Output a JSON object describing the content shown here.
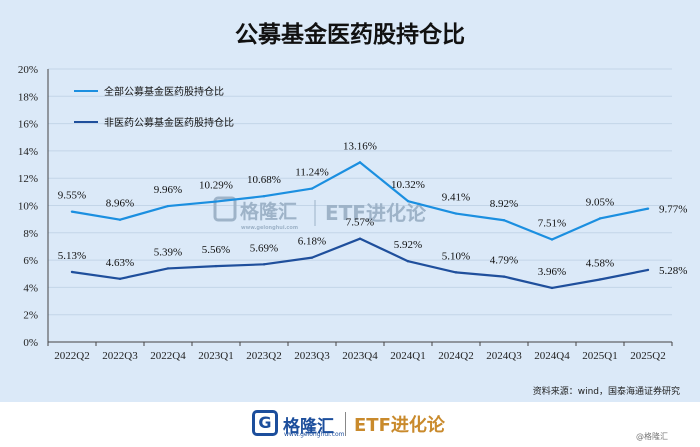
{
  "chart_data": {
    "type": "line",
    "title": "公募基金医药股持仓比",
    "categories": [
      "2022Q2",
      "2022Q3",
      "2022Q4",
      "2023Q1",
      "2023Q2",
      "2023Q3",
      "2023Q4",
      "2024Q1",
      "2024Q2",
      "2024Q3",
      "2024Q4",
      "2025Q1",
      "2025Q2"
    ],
    "series": [
      {
        "name": "全部公募基金医药股持仓比",
        "color": "#1b8fe0",
        "values": [
          9.55,
          8.96,
          9.96,
          10.29,
          10.68,
          11.24,
          13.16,
          10.32,
          9.41,
          8.92,
          7.51,
          9.05,
          9.77
        ],
        "labels": [
          "9.55%",
          "8.96%",
          "9.96%",
          "10.29%",
          "10.68%",
          "11.24%",
          "13.16%",
          "10.32%",
          "9.41%",
          "8.92%",
          "7.51%",
          "9.05%",
          "9.77%"
        ]
      },
      {
        "name": "非医药公募基金医药股持仓比",
        "color": "#1f4f9c",
        "values": [
          5.13,
          4.63,
          5.39,
          5.56,
          5.69,
          6.18,
          7.57,
          5.92,
          5.1,
          4.79,
          3.96,
          4.58,
          5.28
        ],
        "labels": [
          "5.13%",
          "4.63%",
          "5.39%",
          "5.56%",
          "5.69%",
          "6.18%",
          "7.57%",
          "5.92%",
          "5.10%",
          "4.79%",
          "3.96%",
          "4.58%",
          "5.28%"
        ]
      }
    ],
    "yticks": [
      "0%",
      "2%",
      "4%",
      "6%",
      "8%",
      "10%",
      "12%",
      "14%",
      "16%",
      "18%",
      "20%"
    ],
    "ylim": [
      0,
      20
    ],
    "xlabel": "",
    "ylabel": "",
    "legend_position": "top-left",
    "source": "资料来源：wind，国泰海通证券研究"
  },
  "watermark": {
    "brand": "格隆汇",
    "url": "www.gelonghui.com",
    "etf": "ETF进化论"
  },
  "footer": {
    "logo_glyph": "G",
    "brand": "格隆汇",
    "url": "www.gelonghui.com",
    "etf": "ETF进化论",
    "corner": "@格隆汇"
  }
}
